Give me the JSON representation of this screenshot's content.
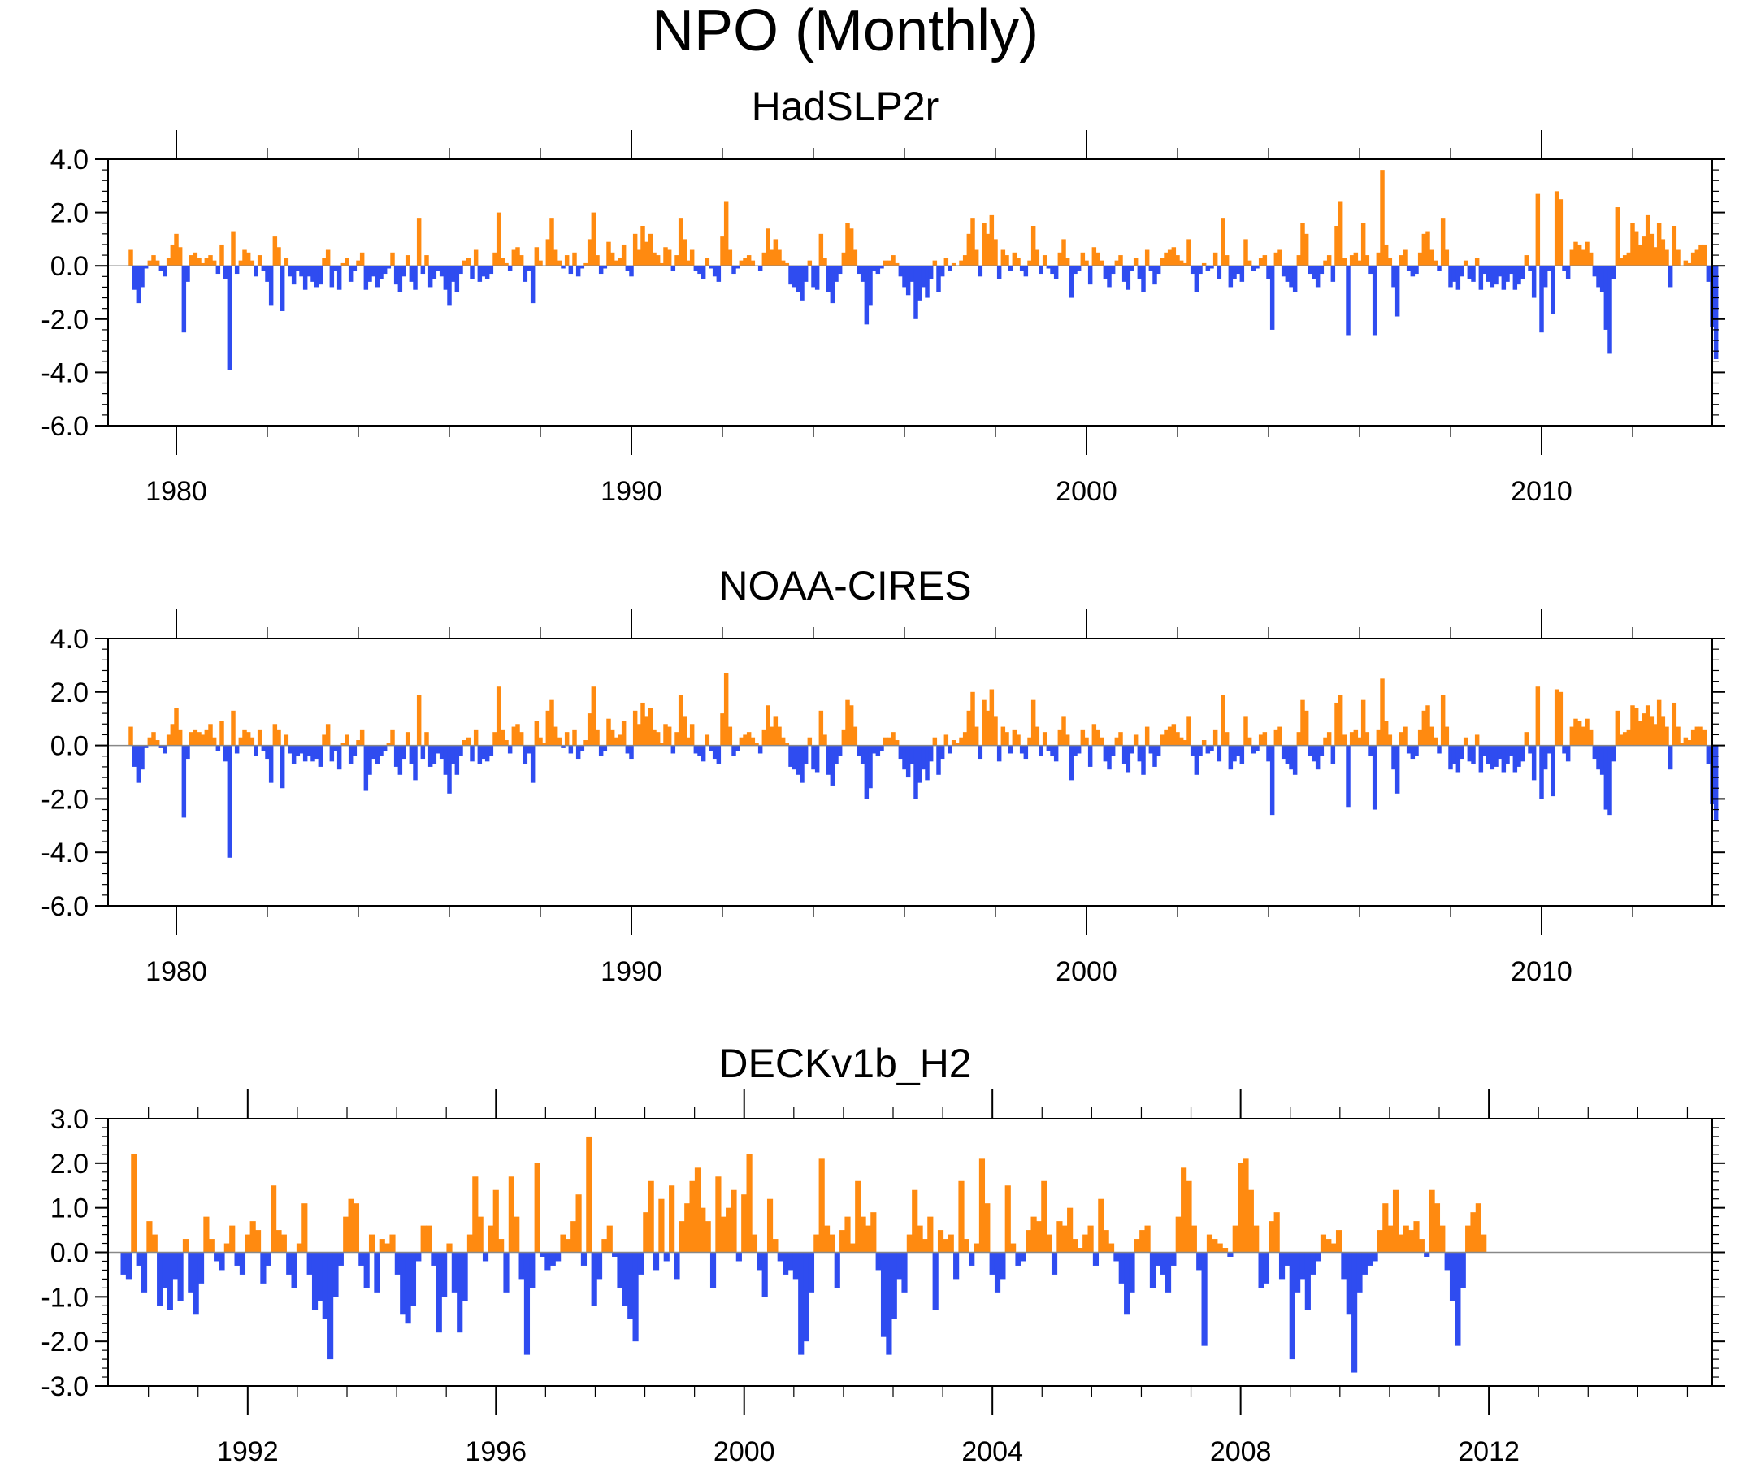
{
  "figure_title": "NPO (Monthly)",
  "colors": {
    "positive": "#ff8a10",
    "negative": "#2f4cf0",
    "axis": "#000000",
    "zero_line": "#888888"
  },
  "chart_data": [
    {
      "type": "area",
      "title": "HadSLP2r",
      "xlabel": "",
      "ylabel": "",
      "xlim": [
        1978.5,
        2013.75
      ],
      "ylim": [
        -6.0,
        4.0
      ],
      "x_ticks": [
        1980,
        1990,
        2000,
        2010
      ],
      "x_tick_labels": [
        "1980",
        "1990",
        "2000",
        "2010"
      ],
      "y_ticks": [
        -6.0,
        -4.0,
        -2.0,
        0.0,
        2.0,
        4.0
      ],
      "y_tick_labels": [
        "-6.0",
        "-4.0",
        "-2.0",
        "0.0",
        "2.0",
        "4.0"
      ],
      "fill_above_zero": "positive",
      "fill_below_zero": "negative",
      "series_start": 1979.0,
      "series_step": 0.0833333,
      "values": [
        0.6,
        -0.9,
        -1.4,
        -0.8,
        -0.1,
        0.2,
        0.4,
        0.2,
        -0.2,
        -0.4,
        0.3,
        0.8,
        1.2,
        0.7,
        -2.5,
        -0.6,
        0.4,
        0.5,
        0.3,
        0.1,
        0.3,
        0.4,
        0.2,
        -0.3,
        0.8,
        -0.5,
        -3.9,
        1.3,
        -0.3,
        0.2,
        0.6,
        0.5,
        0.2,
        -0.4,
        0.4,
        -0.2,
        -0.6,
        -1.5,
        1.1,
        0.7,
        -1.7,
        0.3,
        -0.4,
        -0.7,
        -0.2,
        -0.4,
        -0.9,
        -0.4,
        -0.6,
        -0.8,
        -0.7,
        0.3,
        0.6,
        -0.8,
        -0.2,
        -0.9,
        0.1,
        0.3,
        -0.6,
        -0.2,
        0.2,
        0.5,
        -0.9,
        -0.6,
        -0.4,
        -0.8,
        -0.5,
        -0.3,
        -0.1,
        0.5,
        -0.7,
        -1.0,
        -0.4,
        0.4,
        -0.6,
        -0.9,
        1.8,
        -0.3,
        0.4,
        -0.8,
        -0.5,
        -0.2,
        -0.4,
        -0.9,
        -1.5,
        -0.6,
        -1.0,
        -0.3,
        0.2,
        0.3,
        -0.5,
        0.6,
        -0.6,
        -0.4,
        -0.5,
        -0.3,
        0.5,
        2.0,
        0.3,
        0.1,
        -0.2,
        0.6,
        0.7,
        0.4,
        -0.6,
        -0.2,
        -1.4,
        0.7,
        0.2,
        0.0,
        1.0,
        1.8,
        0.6,
        0.2,
        -0.1,
        0.4,
        -0.3,
        0.5,
        -0.4,
        -0.1,
        0.1,
        1.0,
        2.0,
        0.4,
        -0.3,
        -0.1,
        0.9,
        0.5,
        0.2,
        0.3,
        0.8,
        -0.2,
        -0.4,
        1.2,
        0.6,
        1.5,
        0.9,
        1.2,
        0.5,
        0.4,
        0.1,
        0.7,
        0.6,
        -0.2,
        0.4,
        1.8,
        1.0,
        0.2,
        0.6,
        -0.2,
        -0.3,
        -0.5,
        0.3,
        -0.1,
        -0.4,
        -0.6,
        1.1,
        2.4,
        0.6,
        -0.3,
        -0.1,
        0.2,
        0.3,
        0.4,
        0.2,
        0.0,
        -0.2,
        0.5,
        1.4,
        0.6,
        1.0,
        0.6,
        0.2,
        0.1,
        -0.7,
        -0.8,
        -1.0,
        -1.3,
        -0.6,
        0.2,
        -0.8,
        -0.9,
        1.2,
        0.3,
        -1.0,
        -1.4,
        -0.6,
        -0.3,
        0.5,
        1.6,
        1.4,
        0.6,
        -0.3,
        -0.6,
        -2.2,
        -1.5,
        -0.2,
        -0.3,
        -0.1,
        0.2,
        0.2,
        0.4,
        0.1,
        -0.4,
        -0.8,
        -1.1,
        -0.6,
        -2.0,
        -1.3,
        -0.8,
        -1.2,
        -0.5,
        0.2,
        -1.0,
        -0.4,
        0.3,
        -0.2,
        0.1,
        0.0,
        0.2,
        0.4,
        1.2,
        1.8,
        0.6,
        -0.4,
        1.6,
        1.2,
        1.9,
        1.0,
        -0.5,
        0.6,
        0.4,
        -0.2,
        0.5,
        0.3,
        -0.2,
        -0.4,
        0.2,
        1.5,
        0.6,
        -0.3,
        0.4,
        -0.1,
        -0.3,
        -0.5,
        0.5,
        1.0,
        0.3,
        -1.2,
        -0.3,
        -0.2,
        0.5,
        0.2,
        -0.7,
        0.7,
        0.5,
        0.2,
        -0.5,
        -0.8,
        -0.3,
        0.2,
        0.4,
        -0.6,
        -0.9,
        -0.2,
        0.3,
        -0.5,
        -1.0,
        0.6,
        -0.2,
        -0.7,
        -0.3,
        0.3,
        0.5,
        0.6,
        0.7,
        0.4,
        0.2,
        0.1,
        1.0,
        -0.3,
        -1.0,
        -0.3,
        0.1,
        -0.2,
        -0.1,
        0.5,
        -0.5,
        1.8,
        0.4,
        -0.8,
        -0.5,
        -0.3,
        -0.6,
        1.0,
        0.2,
        -0.2,
        -0.1,
        0.3,
        0.4,
        -0.5,
        -2.4,
        0.5,
        0.6,
        -0.4,
        -0.6,
        -0.8,
        -1.0,
        0.4,
        1.6,
        1.2,
        -0.3,
        -0.5,
        -0.8,
        -0.3,
        0.2,
        0.4,
        -0.6,
        1.5,
        2.4,
        0.3,
        -2.6,
        0.4,
        0.5,
        0.2,
        1.6,
        0.4,
        -0.3,
        -2.6,
        0.5,
        3.6,
        0.8,
        0.3,
        -0.8,
        -1.9,
        0.4,
        0.6,
        -0.2,
        -0.4,
        -0.3,
        0.5,
        1.2,
        1.3,
        0.6,
        0.2,
        -0.2,
        1.8,
        0.6,
        -0.8,
        -0.6,
        -0.9,
        -0.4,
        0.2,
        -0.5,
        -0.6,
        0.3,
        -0.9,
        -0.3,
        -0.6,
        -0.8,
        -0.7,
        -0.4,
        -0.9,
        -0.6,
        -0.3,
        -0.9,
        -0.7,
        -0.5,
        0.4,
        -0.2,
        -1.2,
        2.7,
        -2.5,
        -0.8,
        -0.2,
        -1.8,
        2.8,
        2.5,
        -0.2,
        -0.5,
        0.6,
        0.9,
        0.8,
        0.6,
        0.9,
        0.5,
        -0.4,
        -0.8,
        -1.0,
        -2.4,
        -3.3,
        -0.5,
        2.2,
        0.3,
        0.4,
        0.5,
        1.6,
        1.3,
        0.8,
        1.1,
        1.9,
        1.2,
        0.7,
        1.6,
        1.0,
        0.6,
        -0.8,
        1.5,
        0.6,
        0.0,
        0.2,
        0.1,
        0.5,
        0.6,
        0.8,
        0.8,
        -0.6,
        -2.3,
        -3.5
      ]
    },
    {
      "type": "area",
      "title": "NOAA-CIRES",
      "xlabel": "",
      "ylabel": "",
      "xlim": [
        1978.5,
        2013.75
      ],
      "ylim": [
        -6.0,
        4.0
      ],
      "x_ticks": [
        1980,
        1990,
        2000,
        2010
      ],
      "x_tick_labels": [
        "1980",
        "1990",
        "2000",
        "2010"
      ],
      "y_ticks": [
        -6.0,
        -4.0,
        -2.0,
        0.0,
        2.0,
        4.0
      ],
      "y_tick_labels": [
        "-6.0",
        "-4.0",
        "-2.0",
        "0.0",
        "2.0",
        "4.0"
      ],
      "fill_above_zero": "positive",
      "fill_below_zero": "negative",
      "series_start": 1979.0,
      "series_step": 0.0833333,
      "values": [
        0.7,
        -0.8,
        -1.4,
        -0.9,
        -0.1,
        0.3,
        0.5,
        0.2,
        -0.1,
        -0.3,
        0.4,
        0.8,
        1.4,
        0.6,
        -2.7,
        -0.5,
        0.5,
        0.6,
        0.5,
        0.4,
        0.6,
        0.8,
        0.3,
        -0.2,
        0.9,
        -0.6,
        -4.2,
        1.3,
        -0.3,
        0.3,
        0.6,
        0.5,
        0.3,
        -0.4,
        0.6,
        -0.2,
        -0.5,
        -1.4,
        0.8,
        0.6,
        -1.6,
        0.4,
        -0.3,
        -0.7,
        -0.4,
        -0.3,
        -0.6,
        -0.4,
        -0.6,
        -0.5,
        -0.8,
        0.4,
        0.8,
        -0.6,
        -0.2,
        -0.9,
        0.1,
        0.4,
        -0.7,
        -0.4,
        0.2,
        0.6,
        -1.7,
        -1.1,
        -0.5,
        -0.7,
        -0.4,
        -0.2,
        0.1,
        0.6,
        -0.8,
        -1.1,
        -0.5,
        0.5,
        -0.7,
        -1.3,
        1.9,
        -0.5,
        0.5,
        -0.8,
        -0.7,
        -0.3,
        -0.5,
        -1.1,
        -1.8,
        -0.7,
        -1.1,
        -0.4,
        0.2,
        0.3,
        -0.6,
        0.6,
        -0.7,
        -0.5,
        -0.6,
        -0.4,
        0.5,
        2.2,
        0.6,
        0.2,
        -0.3,
        0.7,
        0.8,
        0.5,
        -0.7,
        -0.3,
        -1.4,
        0.9,
        0.3,
        0.1,
        1.3,
        1.7,
        0.7,
        0.3,
        -0.1,
        0.5,
        -0.3,
        0.6,
        -0.5,
        -0.2,
        0.2,
        1.2,
        2.2,
        0.6,
        -0.4,
        -0.2,
        1.0,
        0.6,
        0.3,
        0.4,
        0.9,
        -0.3,
        -0.5,
        1.3,
        0.8,
        1.6,
        1.1,
        1.4,
        0.6,
        0.5,
        0.1,
        0.8,
        0.7,
        -0.3,
        0.5,
        1.9,
        1.1,
        0.3,
        0.8,
        -0.3,
        -0.4,
        -0.6,
        0.4,
        -0.2,
        -0.5,
        -0.7,
        1.2,
        2.7,
        0.7,
        -0.4,
        -0.2,
        0.3,
        0.4,
        0.5,
        0.3,
        0.1,
        -0.3,
        0.6,
        1.5,
        0.7,
        1.1,
        0.7,
        0.3,
        0.1,
        -0.8,
        -0.9,
        -1.1,
        -1.4,
        -0.7,
        0.3,
        -0.9,
        -1.0,
        1.3,
        0.4,
        -1.1,
        -1.5,
        -0.7,
        -0.4,
        0.6,
        1.7,
        1.5,
        0.7,
        -0.4,
        -0.7,
        -2.0,
        -1.6,
        -0.3,
        -0.4,
        -0.2,
        0.3,
        0.3,
        0.5,
        0.2,
        -0.5,
        -0.9,
        -1.2,
        -0.7,
        -2.0,
        -1.4,
        -0.9,
        -1.3,
        -0.6,
        0.3,
        -1.1,
        -0.5,
        0.4,
        -0.3,
        0.2,
        0.1,
        0.3,
        0.5,
        1.3,
        2.0,
        0.7,
        -0.5,
        1.7,
        1.3,
        2.1,
        1.1,
        -0.6,
        0.7,
        0.5,
        -0.3,
        0.6,
        0.4,
        -0.3,
        -0.5,
        0.3,
        1.7,
        0.7,
        -0.4,
        0.5,
        -0.2,
        -0.4,
        -0.6,
        0.6,
        1.1,
        0.4,
        -1.3,
        -0.4,
        -0.3,
        0.6,
        0.3,
        -0.8,
        0.8,
        0.6,
        0.3,
        -0.6,
        -0.9,
        -0.4,
        0.3,
        0.5,
        -0.7,
        -1.0,
        -0.3,
        0.4,
        -0.6,
        -1.1,
        0.7,
        -0.3,
        -0.8,
        -0.4,
        0.4,
        0.6,
        0.7,
        0.8,
        0.5,
        0.3,
        0.2,
        1.1,
        -0.4,
        -1.1,
        -0.4,
        0.2,
        -0.3,
        -0.2,
        0.6,
        -0.6,
        1.9,
        0.5,
        -0.9,
        -0.6,
        -0.4,
        -0.7,
        1.1,
        0.3,
        -0.3,
        -0.2,
        0.4,
        0.5,
        -0.6,
        -2.6,
        0.6,
        0.7,
        -0.5,
        -0.7,
        -0.9,
        -1.1,
        0.5,
        1.7,
        1.3,
        -0.4,
        -0.6,
        -0.9,
        -0.4,
        0.3,
        0.5,
        -0.7,
        1.6,
        1.9,
        0.4,
        -2.3,
        0.5,
        0.6,
        0.3,
        1.7,
        0.5,
        -0.4,
        -2.4,
        0.6,
        2.5,
        0.9,
        0.4,
        -0.9,
        -1.8,
        0.5,
        0.7,
        -0.3,
        -0.5,
        -0.4,
        0.6,
        1.3,
        1.5,
        0.7,
        0.3,
        -0.3,
        1.9,
        0.7,
        -0.9,
        -0.7,
        -1.0,
        -0.5,
        0.3,
        -0.6,
        -0.7,
        0.4,
        -1.0,
        -0.4,
        -0.7,
        -0.9,
        -0.8,
        -0.5,
        -1.0,
        -0.7,
        -0.4,
        -1.0,
        -0.8,
        -0.6,
        0.5,
        -0.3,
        -1.3,
        2.2,
        -2.0,
        -0.9,
        -0.3,
        -1.9,
        2.1,
        2.0,
        -0.3,
        -0.6,
        0.7,
        1.0,
        0.9,
        0.7,
        1.0,
        0.6,
        -0.5,
        -0.9,
        -1.1,
        -2.4,
        -2.6,
        -0.6,
        1.3,
        0.4,
        0.5,
        0.6,
        1.5,
        1.4,
        0.9,
        1.2,
        1.5,
        1.1,
        0.8,
        1.7,
        1.1,
        0.7,
        -0.9,
        1.6,
        0.7,
        0.1,
        0.3,
        0.2,
        0.6,
        0.7,
        0.7,
        0.6,
        -0.7,
        -2.2,
        -2.8
      ]
    },
    {
      "type": "area",
      "title": "DECKv1b_H2",
      "xlabel": "",
      "ylabel": "",
      "xlim": [
        1989.75,
        2015.6
      ],
      "ylim": [
        -3.0,
        3.0
      ],
      "x_ticks": [
        1992,
        1996,
        2000,
        2004,
        2008,
        2012
      ],
      "x_tick_labels": [
        "1992",
        "1996",
        "2000",
        "2004",
        "2008",
        "2012"
      ],
      "y_ticks": [
        -3.0,
        -2.0,
        -1.0,
        0.0,
        1.0,
        2.0,
        3.0
      ],
      "y_tick_labels": [
        "-3.0",
        "-2.0",
        "-1.0",
        "0.0",
        "1.0",
        "2.0",
        "3.0"
      ],
      "fill_above_zero": "positive",
      "fill_below_zero": "negative",
      "series_start": 1990.0,
      "series_step": 0.0833333,
      "values": [
        -0.5,
        -0.6,
        2.2,
        -0.3,
        -0.9,
        0.7,
        0.4,
        -1.2,
        -0.8,
        -1.3,
        -0.6,
        -1.1,
        0.3,
        -0.9,
        -1.4,
        -0.7,
        0.8,
        0.3,
        -0.2,
        -0.4,
        0.2,
        0.6,
        -0.3,
        -0.5,
        0.4,
        0.7,
        0.5,
        -0.7,
        -0.3,
        1.5,
        0.5,
        0.4,
        -0.5,
        -0.8,
        0.2,
        1.1,
        -0.5,
        -1.3,
        -1.1,
        -1.5,
        -2.4,
        -1.0,
        -0.3,
        0.8,
        1.2,
        1.1,
        -0.3,
        -0.8,
        0.4,
        -0.9,
        0.3,
        0.2,
        0.4,
        -0.5,
        -1.4,
        -1.6,
        -1.2,
        -0.2,
        0.6,
        0.6,
        -0.3,
        -1.8,
        -1.0,
        0.2,
        -0.9,
        -1.8,
        -1.1,
        0.4,
        1.7,
        0.8,
        -0.2,
        0.6,
        1.4,
        0.3,
        -0.9,
        1.7,
        0.8,
        -0.6,
        -2.3,
        -0.8,
        2.0,
        -0.1,
        -0.4,
        -0.3,
        -0.2,
        0.4,
        0.3,
        0.7,
        1.3,
        -0.3,
        2.6,
        -1.2,
        -0.6,
        0.3,
        0.6,
        -0.1,
        -0.8,
        -1.2,
        -1.5,
        -2.0,
        -0.5,
        0.9,
        1.6,
        -0.4,
        1.2,
        -0.2,
        1.5,
        -0.6,
        0.7,
        1.1,
        1.6,
        1.9,
        1.0,
        0.7,
        -0.8,
        1.7,
        0.8,
        1.0,
        1.4,
        -0.2,
        1.3,
        2.2,
        0.4,
        -0.4,
        -1.0,
        1.2,
        0.3,
        -0.2,
        -0.5,
        -0.4,
        -0.6,
        -2.3,
        -2.0,
        -0.9,
        0.4,
        2.1,
        0.6,
        0.4,
        -0.8,
        0.5,
        0.8,
        0.2,
        1.6,
        0.8,
        0.6,
        0.9,
        -0.4,
        -1.9,
        -2.3,
        -1.5,
        -0.6,
        -0.9,
        0.4,
        1.4,
        0.6,
        0.3,
        0.8,
        -1.3,
        0.5,
        0.3,
        0.4,
        -0.6,
        1.6,
        0.3,
        -0.3,
        0.2,
        2.1,
        1.1,
        -0.5,
        -0.9,
        -0.6,
        1.5,
        0.2,
        -0.3,
        -0.2,
        0.5,
        0.8,
        0.7,
        1.6,
        0.4,
        -0.5,
        0.7,
        0.6,
        1.0,
        0.3,
        0.1,
        0.4,
        0.6,
        -0.3,
        1.2,
        0.5,
        0.2,
        -0.2,
        -0.7,
        -1.4,
        -0.9,
        0.3,
        0.5,
        0.6,
        -0.8,
        -0.3,
        -0.5,
        -0.9,
        -0.3,
        0.8,
        1.9,
        1.6,
        0.6,
        -0.4,
        -2.1,
        0.4,
        0.3,
        0.2,
        0.1,
        -0.1,
        0.6,
        2.0,
        2.1,
        1.4,
        0.6,
        -0.8,
        -0.7,
        0.7,
        0.9,
        -0.6,
        -0.3,
        -2.4,
        -0.9,
        -0.6,
        -1.3,
        -0.5,
        -0.2,
        0.4,
        0.3,
        0.2,
        0.5,
        -0.6,
        -1.4,
        -2.7,
        -0.9,
        -0.5,
        -0.3,
        -0.2,
        0.5,
        1.1,
        0.6,
        1.4,
        0.4,
        0.6,
        0.5,
        0.7,
        0.3,
        -0.1,
        1.4,
        1.1,
        0.6,
        -0.4,
        -1.1,
        -2.1,
        -0.8,
        0.6,
        0.9,
        1.1,
        0.4
      ]
    }
  ]
}
